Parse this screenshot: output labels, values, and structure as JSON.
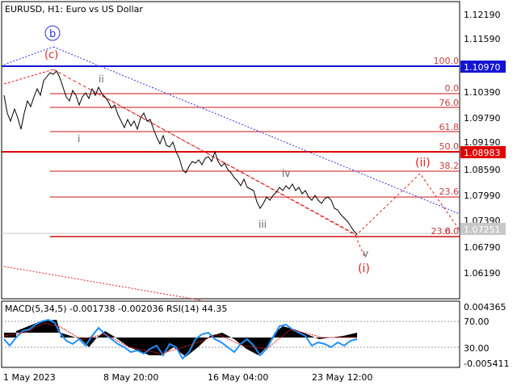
{
  "header": {
    "title": "EURUSD, H1:  Euro vs US Dollar"
  },
  "price_axis": {
    "ticks": [
      "1.12190",
      "1.11590",
      "1.10390",
      "1.09790",
      "1.09190",
      "1.08590",
      "1.07990",
      "1.07390",
      "1.06790",
      "1.06190"
    ],
    "tags": [
      {
        "label": "1.10970",
        "color": "#1414d2",
        "text_color": "#ffffff"
      },
      {
        "label": "1.08983",
        "color": "#e00000",
        "text_color": "#ffffff"
      },
      {
        "label": "1.07251",
        "color": "#c8c8c8",
        "text_color": "#ffffff"
      }
    ]
  },
  "fib_levels": [
    "100.0",
    "0.0",
    "76.0",
    "61.8",
    "50.0",
    "38.2",
    "23.6",
    "0.0",
    "23.6"
  ],
  "wave_labels": {
    "b": "b",
    "c": "(c)",
    "i": "i",
    "ii": "ii",
    "iii": "iii",
    "iv": "iv",
    "v": "v",
    "wave_ii_future": "(ii)",
    "wave_i_future": "(i)"
  },
  "indicator": {
    "title": "MACD(5,34,5) -0.001738 -0.002036 RSI(14) 44.35",
    "axis": [
      "0.004365",
      "70.00",
      "30.00",
      "-0.005411"
    ]
  },
  "time_axis": [
    "1 May 2023",
    "8 May 20:00",
    "16 May 04:00",
    "23 May 12:00"
  ],
  "colors": {
    "red_level": "#e00000",
    "blue_level": "#1414d2",
    "fib_line": "#c81414",
    "fib_text": "#c83c3c",
    "channel_red": "#e02020",
    "channel_blue": "#3030e0",
    "rsi": "#1e90ff",
    "macd": "#000000"
  }
}
